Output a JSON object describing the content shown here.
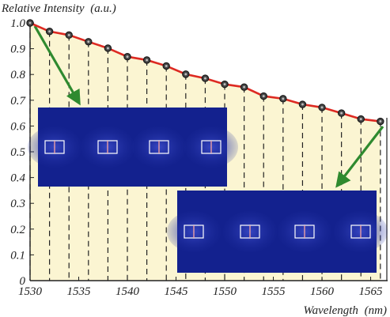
{
  "chart_data": {
    "type": "line",
    "title": "",
    "ylabel": "Relative Intensity",
    "ylabel_unit": "(a.u.)",
    "xlabel": "Wavelength",
    "xlabel_unit": "(nm)",
    "xlim": [
      1530,
      1566.5
    ],
    "ylim": [
      0,
      1.0
    ],
    "x_ticks": [
      "1530",
      "1535",
      "1540",
      "1545",
      "1550",
      "1555",
      "1560",
      "1565"
    ],
    "y_ticks": [
      "0",
      "0.1",
      "0.2",
      "0.3",
      "0.4",
      "0.5",
      "0.6",
      "0.7",
      "0.8",
      "0.9",
      "1.0"
    ],
    "grid": "dashed vertical drop lines at each data point",
    "fill_color": "#fbf5d2",
    "line_color": "#dd2a22",
    "marker_color": "#444444",
    "arrow_color": "#2f8a2f",
    "inset_color": "#13218e",
    "series": [
      {
        "x": [
          1530,
          1532,
          1534,
          1536,
          1538,
          1540,
          1542,
          1544,
          1546,
          1548,
          1550,
          1552,
          1554,
          1556,
          1558,
          1560,
          1562,
          1564,
          1566
        ],
        "values": [
          1.0,
          0.967,
          0.953,
          0.927,
          0.902,
          0.869,
          0.856,
          0.833,
          0.801,
          0.785,
          0.762,
          0.751,
          0.716,
          0.706,
          0.684,
          0.672,
          0.65,
          0.627,
          0.618
        ]
      }
    ]
  }
}
